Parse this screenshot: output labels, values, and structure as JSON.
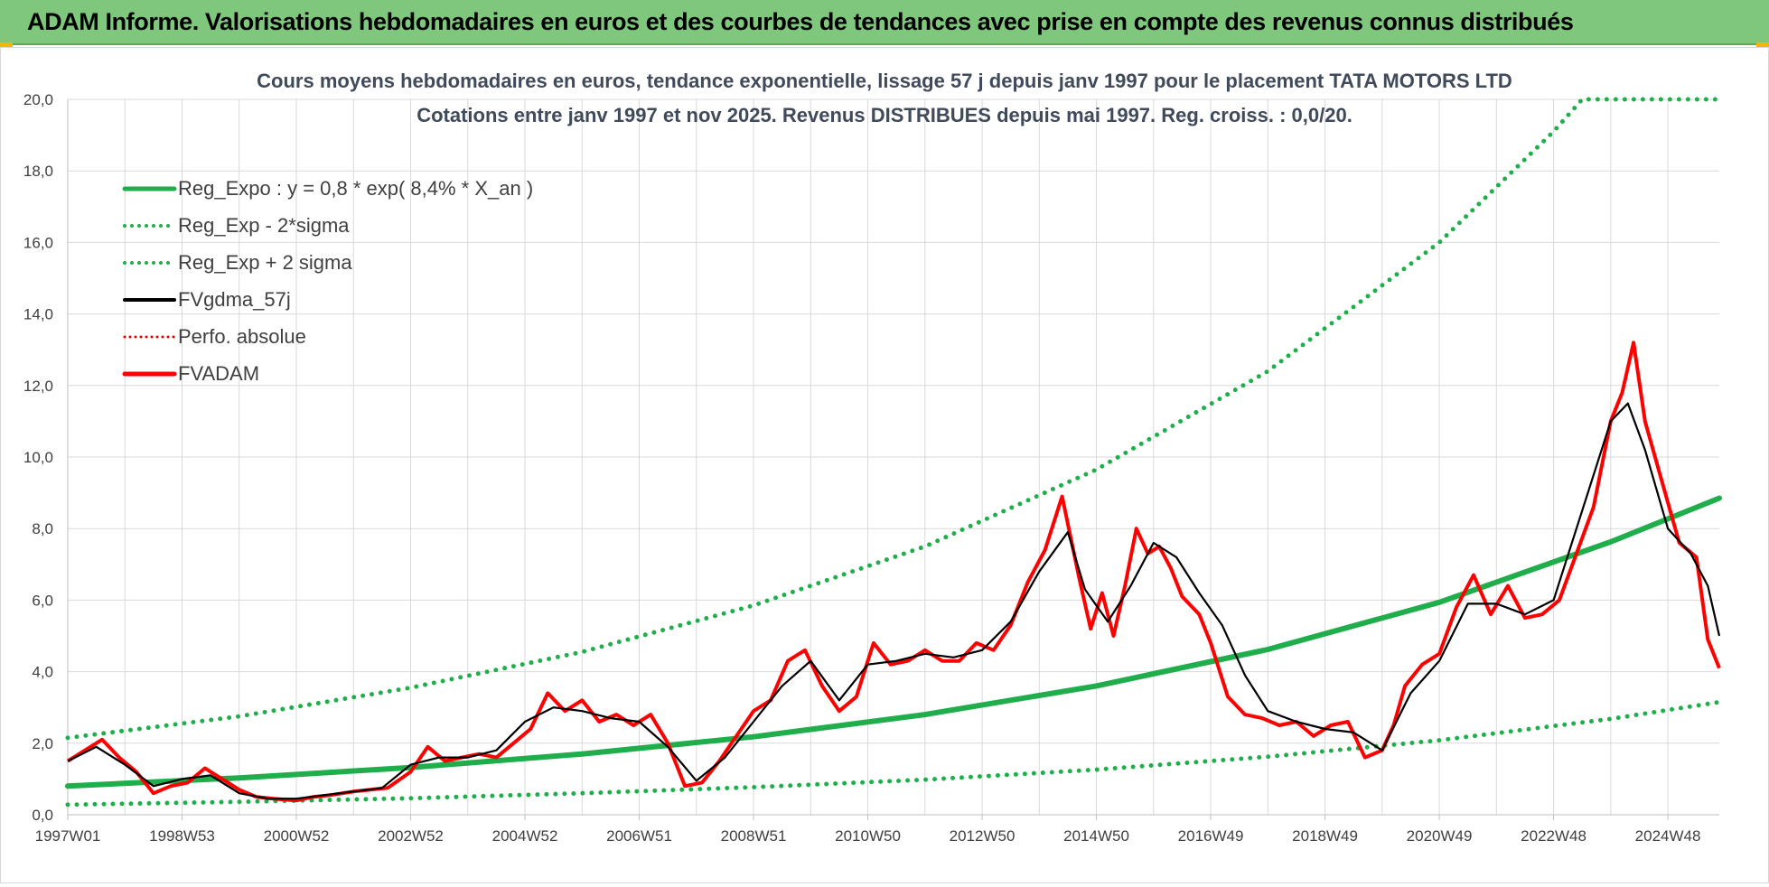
{
  "banner": {
    "title": "ADAM Informe. Valorisations hebdomadaires en euros et des courbes de tendances avec prise en compte des revenus connus distribués"
  },
  "colors": {
    "banner_bg": "#7fc77d",
    "reg_expo": "#1fae4b",
    "sigma_bands": "#1fae4b",
    "fvgdma": "#000000",
    "perfo_absolue": "#e00000",
    "fvadam": "#ff0000",
    "grid": "#d9d9d9"
  },
  "chart_data": {
    "type": "line",
    "title": "Cours moyens hebdomadaires en euros, tendance exponentielle, lissage 57 j depuis janv 1997 pour le placement TATA MOTORS LTD",
    "subtitle": "Cotations entre janv 1997 et nov 2025. Revenus DISTRIBUES depuis mai 1997. Reg. croiss. : 0,0/20.",
    "xlabel": "",
    "ylabel": "",
    "ylim": [
      0,
      20
    ],
    "xlim": [
      1997.0,
      2025.9
    ],
    "y_ticks": [
      "0,0",
      "2,0",
      "4,0",
      "6,0",
      "8,0",
      "10,0",
      "12,0",
      "14,0",
      "16,0",
      "18,0",
      "20,0"
    ],
    "x_tick_labels": [
      "1997W01",
      "1998W53",
      "2000W52",
      "2002W52",
      "2004W52",
      "2006W51",
      "2008W51",
      "2010W50",
      "2012W50",
      "2014W50",
      "2016W49",
      "2018W49",
      "2020W49",
      "2022W48",
      "2024W48"
    ],
    "x_tick_years": [
      1997.0,
      1999.0,
      2001.0,
      2003.0,
      2005.0,
      2007.0,
      2009.0,
      2011.0,
      2013.0,
      2015.0,
      2017.0,
      2019.0,
      2021.0,
      2023.0,
      2025.0
    ],
    "grid": true,
    "legend_position": "top-left",
    "legend": [
      {
        "label": "Reg_Expo : y = 0,8 * exp( 8,4% *  X_an )",
        "style": "solid-green"
      },
      {
        "label": "Reg_Exp - 2*sigma",
        "style": "dotted-green"
      },
      {
        "label": "Reg_Exp + 2 sigma",
        "style": "dotted-green"
      },
      {
        "label": "FVgdma_57j",
        "style": "solid-black"
      },
      {
        "label": "Perfo. absolue",
        "style": "dotted-red"
      },
      {
        "label": "FVADAM",
        "style": "solid-red"
      }
    ],
    "trend_curves": [
      {
        "name": "Reg_Expo",
        "x": [
          1997.0,
          2000.0,
          2003.0,
          2006.0,
          2009.0,
          2012.0,
          2015.0,
          2018.0,
          2021.0,
          2024.0,
          2025.9
        ],
        "y": [
          0.8,
          1.03,
          1.32,
          1.7,
          2.18,
          2.8,
          3.6,
          4.62,
          5.94,
          7.63,
          8.85
        ]
      },
      {
        "name": "Reg_Exp - 2*sigma",
        "x": [
          1997.0,
          2000.0,
          2003.0,
          2006.0,
          2009.0,
          2012.0,
          2015.0,
          2018.0,
          2021.0,
          2024.0,
          2025.9
        ],
        "y": [
          0.28,
          0.36,
          0.46,
          0.6,
          0.77,
          0.98,
          1.26,
          1.62,
          2.08,
          2.68,
          3.15
        ]
      },
      {
        "name": "Reg_Exp + 2 sigma",
        "x": [
          1997.0,
          2000.0,
          2003.0,
          2006.0,
          2009.0,
          2012.0,
          2015.0,
          2018.0,
          2021.0,
          2023.0,
          2023.5,
          2025.9
        ],
        "y": [
          2.15,
          2.75,
          3.55,
          4.55,
          5.85,
          7.5,
          9.65,
          12.4,
          16.0,
          19.1,
          20.0,
          20.0
        ]
      }
    ],
    "series": [
      {
        "name": "FVADAM",
        "x": [
          1997.0,
          1997.3,
          1997.6,
          1997.9,
          1998.2,
          1998.5,
          1998.8,
          1999.1,
          1999.4,
          1999.7,
          2000.0,
          2000.3,
          2000.6,
          2001.0,
          2001.3,
          2001.6,
          2002.0,
          2002.3,
          2002.6,
          2003.0,
          2003.3,
          2003.6,
          2003.9,
          2004.2,
          2004.5,
          2004.8,
          2005.1,
          2005.4,
          2005.7,
          2006.0,
          2006.3,
          2006.6,
          2006.9,
          2007.2,
          2007.5,
          2007.8,
          2008.1,
          2008.4,
          2008.7,
          2009.0,
          2009.3,
          2009.6,
          2009.9,
          2010.2,
          2010.5,
          2010.8,
          2011.1,
          2011.4,
          2011.7,
          2012.0,
          2012.3,
          2012.6,
          2012.9,
          2013.2,
          2013.5,
          2013.8,
          2014.1,
          2014.4,
          2014.7,
          2014.9,
          2015.1,
          2015.3,
          2015.5,
          2015.7,
          2015.9,
          2016.1,
          2016.3,
          2016.5,
          2016.8,
          2017.0,
          2017.3,
          2017.6,
          2017.9,
          2018.2,
          2018.5,
          2018.8,
          2019.1,
          2019.4,
          2019.7,
          2020.0,
          2020.2,
          2020.4,
          2020.7,
          2021.0,
          2021.3,
          2021.6,
          2021.9,
          2022.2,
          2022.5,
          2022.8,
          2023.1,
          2023.4,
          2023.7,
          2024.0,
          2024.2,
          2024.4,
          2024.6,
          2024.9,
          2025.2,
          2025.5,
          2025.7,
          2025.9
        ],
        "y": [
          1.5,
          1.8,
          2.1,
          1.6,
          1.2,
          0.6,
          0.8,
          0.9,
          1.3,
          1.0,
          0.7,
          0.5,
          0.45,
          0.4,
          0.5,
          0.55,
          0.65,
          0.7,
          0.75,
          1.2,
          1.9,
          1.5,
          1.6,
          1.7,
          1.6,
          2.0,
          2.4,
          3.4,
          2.9,
          3.2,
          2.6,
          2.8,
          2.5,
          2.8,
          2.0,
          0.8,
          0.9,
          1.5,
          2.2,
          2.9,
          3.2,
          4.3,
          4.6,
          3.6,
          2.9,
          3.3,
          4.8,
          4.2,
          4.3,
          4.6,
          4.3,
          4.3,
          4.8,
          4.6,
          5.3,
          6.5,
          7.4,
          8.9,
          6.6,
          5.2,
          6.2,
          5.0,
          6.4,
          8.0,
          7.3,
          7.5,
          6.9,
          6.1,
          5.6,
          4.8,
          3.3,
          2.8,
          2.7,
          2.5,
          2.6,
          2.2,
          2.5,
          2.6,
          1.6,
          1.8,
          2.5,
          3.6,
          4.2,
          4.5,
          5.8,
          6.7,
          5.6,
          6.4,
          5.5,
          5.6,
          6.0,
          7.3,
          8.6,
          11.0,
          11.8,
          13.2,
          11.0,
          9.3,
          7.6,
          7.2,
          4.9,
          4.1
        ]
      },
      {
        "name": "FVgdma_57j",
        "x": [
          1997.0,
          1997.5,
          1998.0,
          1998.5,
          1999.0,
          1999.5,
          2000.0,
          2000.5,
          2001.0,
          2001.5,
          2002.0,
          2002.5,
          2003.0,
          2003.5,
          2004.0,
          2004.5,
          2005.0,
          2005.5,
          2006.0,
          2006.5,
          2007.0,
          2007.5,
          2008.0,
          2008.5,
          2009.0,
          2009.5,
          2010.0,
          2010.5,
          2011.0,
          2011.5,
          2012.0,
          2012.5,
          2013.0,
          2013.5,
          2014.0,
          2014.5,
          2014.8,
          2015.2,
          2015.6,
          2016.0,
          2016.4,
          2016.8,
          2017.2,
          2017.6,
          2018.0,
          2018.5,
          2019.0,
          2019.5,
          2020.0,
          2020.5,
          2021.0,
          2021.5,
          2022.0,
          2022.5,
          2023.0,
          2023.5,
          2024.0,
          2024.3,
          2024.6,
          2025.0,
          2025.4,
          2025.7,
          2025.9
        ],
        "y": [
          1.5,
          1.9,
          1.4,
          0.8,
          1.0,
          1.1,
          0.6,
          0.45,
          0.45,
          0.55,
          0.65,
          0.75,
          1.4,
          1.6,
          1.6,
          1.8,
          2.6,
          3.0,
          2.9,
          2.7,
          2.6,
          1.9,
          0.95,
          1.6,
          2.6,
          3.6,
          4.3,
          3.2,
          4.2,
          4.3,
          4.5,
          4.4,
          4.6,
          5.4,
          6.8,
          7.9,
          6.3,
          5.4,
          6.4,
          7.6,
          7.2,
          6.2,
          5.3,
          3.9,
          2.9,
          2.6,
          2.4,
          2.3,
          1.8,
          3.4,
          4.3,
          5.9,
          5.9,
          5.6,
          6.0,
          8.5,
          11.0,
          11.5,
          10.2,
          8.0,
          7.3,
          6.4,
          5.0
        ]
      }
    ]
  }
}
